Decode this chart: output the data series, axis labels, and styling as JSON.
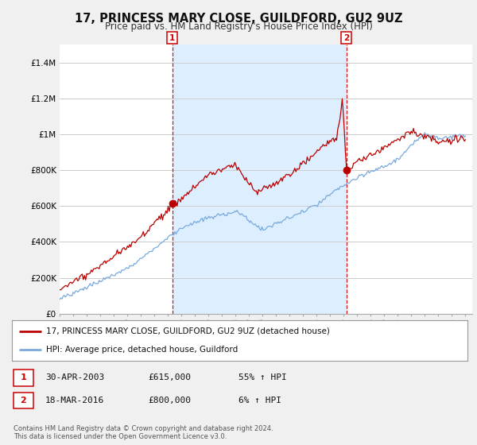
{
  "title": "17, PRINCESS MARY CLOSE, GUILDFORD, GU2 9UZ",
  "subtitle": "Price paid vs. HM Land Registry's House Price Index (HPI)",
  "ytick_labels": [
    "£0",
    "£200K",
    "£400K",
    "£600K",
    "£800K",
    "£1M",
    "£1.2M",
    "£1.4M"
  ],
  "yticks": [
    0,
    200000,
    400000,
    600000,
    800000,
    1000000,
    1200000,
    1400000
  ],
  "ylim": [
    0,
    1500000
  ],
  "xmin": 1995,
  "xmax": 2025.5,
  "legend_line1": "17, PRINCESS MARY CLOSE, GUILDFORD, GU2 9UZ (detached house)",
  "legend_line2": "HPI: Average price, detached house, Guildford",
  "table_rows": [
    {
      "num": "1",
      "date": "30-APR-2003",
      "price": "£615,000",
      "change": "55% ↑ HPI"
    },
    {
      "num": "2",
      "date": "18-MAR-2016",
      "price": "£800,000",
      "change": "6% ↑ HPI"
    }
  ],
  "footnote1": "Contains HM Land Registry data © Crown copyright and database right 2024.",
  "footnote2": "This data is licensed under the Open Government Licence v3.0.",
  "price_paid_color": "#bb0000",
  "hpi_color": "#7aaadd",
  "vline_color": "#cc0000",
  "shade_color": "#ddeeff",
  "background_color": "#f0f0f0",
  "plot_bg_color": "#ffffff",
  "grid_color": "#cccccc",
  "transaction1_year": 2003.33,
  "transaction1_price": 615000,
  "transaction2_year": 2016.21,
  "transaction2_price": 800000
}
